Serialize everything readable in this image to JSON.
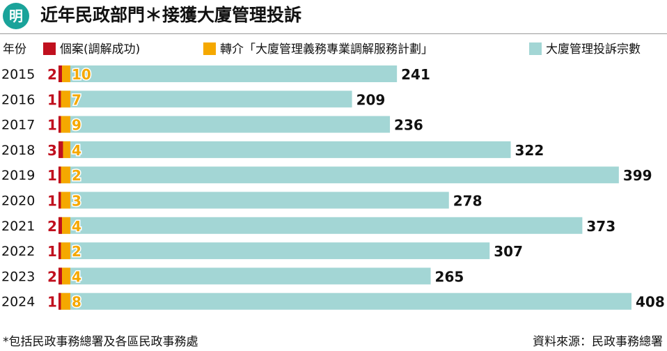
{
  "header": {
    "logo_text": "明",
    "title": "近年民政部門＊接獲大廈管理投訴"
  },
  "legend": {
    "year_label": "年份",
    "items": [
      {
        "label": "個案(調解成功)",
        "color": "#c0101e"
      },
      {
        "label": "轉介「大廈管理義務專業調解服務計劃」",
        "color": "#f5a800"
      },
      {
        "label": "大廈管理投訴宗數",
        "color": "#a3d6d5"
      }
    ]
  },
  "chart_data": {
    "type": "bar",
    "orientation": "horizontal",
    "categories": [
      "2015",
      "2016",
      "2017",
      "2018",
      "2019",
      "2020",
      "2021",
      "2022",
      "2023",
      "2024"
    ],
    "series": [
      {
        "name": "個案(調解成功)",
        "color": "#c0101e",
        "label_color": "#c0101e",
        "values": [
          2,
          1,
          1,
          3,
          1,
          1,
          2,
          1,
          2,
          1
        ]
      },
      {
        "name": "轉介「大廈管理義務專業調解服務計劃」",
        "color": "#f5a800",
        "label_color": "#f5a800",
        "values": [
          10,
          7,
          9,
          4,
          2,
          3,
          4,
          2,
          4,
          8
        ]
      },
      {
        "name": "大廈管理投訴宗數",
        "color": "#a3d6d5",
        "label_color": "#111111",
        "values": [
          241,
          209,
          236,
          322,
          399,
          278,
          373,
          307,
          265,
          408
        ]
      }
    ],
    "xlim": [
      0,
      408
    ],
    "grid": false,
    "legend_position": "top"
  },
  "footer": {
    "note": "*包括民政事務總署及各區民政事務處",
    "source": "資料來源：民政事務總署"
  }
}
